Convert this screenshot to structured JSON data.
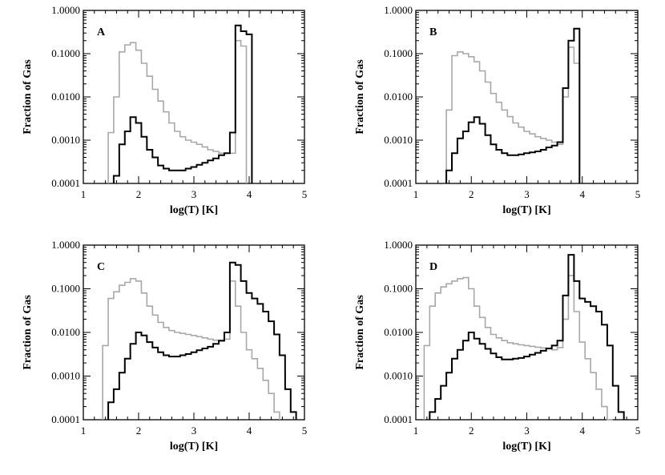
{
  "figure": {
    "xlabel": "log(T) [K]",
    "ylabel": "Fraction of Gas"
  },
  "colors": {
    "dark": "#000000",
    "light": "#a8a8a8"
  },
  "chart_data": [
    {
      "panel": "A",
      "type": "line",
      "xlabel": "log(T) [K]",
      "ylabel": "Fraction of Gas",
      "xlim": [
        1,
        5
      ],
      "ylim": [
        0.0001,
        1.0
      ],
      "yscale": "log",
      "xticks": [
        "1",
        "2",
        "3",
        "4",
        "5"
      ],
      "yticks": [
        "0.0001",
        "0.0010",
        "0.0100",
        "0.1000",
        "1.0000"
      ],
      "binwidth": 0.1,
      "series": [
        {
          "name": "dark",
          "color": "#000000",
          "x": [
            1.6,
            1.7,
            1.8,
            1.9,
            2.0,
            2.1,
            2.2,
            2.3,
            2.4,
            2.5,
            2.6,
            2.7,
            2.8,
            2.9,
            3.0,
            3.1,
            3.2,
            3.3,
            3.4,
            3.5,
            3.6,
            3.7,
            3.8,
            3.9,
            4.0
          ],
          "y": [
            0.00015,
            0.0008,
            0.0016,
            0.0034,
            0.0025,
            0.0012,
            0.0006,
            0.0004,
            0.00026,
            0.00022,
            0.0002,
            0.0002,
            0.0002,
            0.00022,
            0.00024,
            0.00027,
            0.0003,
            0.00034,
            0.00038,
            0.00045,
            0.0005,
            0.0015,
            0.45,
            0.33,
            0.28
          ]
        },
        {
          "name": "light",
          "color": "#a8a8a8",
          "x": [
            1.5,
            1.6,
            1.7,
            1.8,
            1.9,
            2.0,
            2.1,
            2.2,
            2.3,
            2.4,
            2.5,
            2.6,
            2.7,
            2.8,
            2.9,
            3.0,
            3.1,
            3.2,
            3.3,
            3.4,
            3.5,
            3.6,
            3.7,
            3.8,
            3.9
          ],
          "y": [
            0.0015,
            0.01,
            0.11,
            0.16,
            0.18,
            0.12,
            0.06,
            0.03,
            0.015,
            0.008,
            0.0045,
            0.0025,
            0.0016,
            0.0012,
            0.001,
            0.0009,
            0.0008,
            0.0007,
            0.0006,
            0.00055,
            0.0005,
            0.0005,
            0.0005,
            0.2,
            0.15
          ]
        }
      ]
    },
    {
      "panel": "B",
      "type": "line",
      "xlabel": "log(T) [K]",
      "ylabel": "Fraction of Gas",
      "xlim": [
        1,
        5
      ],
      "ylim": [
        0.0001,
        1.0
      ],
      "yscale": "log",
      "xticks": [
        "1",
        "2",
        "3",
        "4",
        "5"
      ],
      "yticks": [
        "0.0001",
        "0.0010",
        "0.0100",
        "0.1000",
        "1.0000"
      ],
      "binwidth": 0.1,
      "series": [
        {
          "name": "dark",
          "color": "#000000",
          "x": [
            1.6,
            1.7,
            1.8,
            1.9,
            2.0,
            2.1,
            2.2,
            2.3,
            2.4,
            2.5,
            2.6,
            2.7,
            2.8,
            2.9,
            3.0,
            3.1,
            3.2,
            3.3,
            3.4,
            3.5,
            3.6,
            3.7,
            3.8,
            3.9
          ],
          "y": [
            0.0002,
            0.0005,
            0.0011,
            0.0016,
            0.0026,
            0.0034,
            0.0024,
            0.0013,
            0.0008,
            0.0006,
            0.0005,
            0.00045,
            0.00045,
            0.00047,
            0.0005,
            0.00052,
            0.00055,
            0.0006,
            0.00068,
            0.00075,
            0.0009,
            0.016,
            0.2,
            0.38
          ]
        },
        {
          "name": "light",
          "color": "#a8a8a8",
          "x": [
            1.6,
            1.7,
            1.8,
            1.9,
            2.0,
            2.1,
            2.2,
            2.3,
            2.4,
            2.5,
            2.6,
            2.7,
            2.8,
            2.9,
            3.0,
            3.1,
            3.2,
            3.3,
            3.4,
            3.5,
            3.6,
            3.7,
            3.8,
            3.9
          ],
          "y": [
            0.005,
            0.09,
            0.11,
            0.1,
            0.085,
            0.065,
            0.04,
            0.022,
            0.012,
            0.0075,
            0.005,
            0.0035,
            0.0025,
            0.002,
            0.0016,
            0.0014,
            0.0012,
            0.0011,
            0.001,
            0.0009,
            0.0008,
            0.01,
            0.14,
            0.06
          ]
        }
      ]
    },
    {
      "panel": "C",
      "type": "line",
      "xlabel": "log(T) [K]",
      "ylabel": "Fraction of Gas",
      "xlim": [
        1,
        5
      ],
      "ylim": [
        0.0001,
        1.0
      ],
      "yscale": "log",
      "xticks": [
        "1",
        "2",
        "3",
        "4",
        "5"
      ],
      "yticks": [
        "0.0001",
        "0.0010",
        "0.0100",
        "0.1000",
        "1.0000"
      ],
      "binwidth": 0.1,
      "series": [
        {
          "name": "dark",
          "color": "#000000",
          "x": [
            1.5,
            1.6,
            1.7,
            1.8,
            1.9,
            2.0,
            2.1,
            2.2,
            2.3,
            2.4,
            2.5,
            2.6,
            2.7,
            2.8,
            2.9,
            3.0,
            3.1,
            3.2,
            3.3,
            3.4,
            3.5,
            3.6,
            3.7,
            3.8,
            3.9,
            4.0,
            4.1,
            4.2,
            4.3,
            4.4,
            4.5,
            4.6,
            4.7,
            4.8
          ],
          "y": [
            0.00025,
            0.0005,
            0.0012,
            0.0025,
            0.0055,
            0.01,
            0.0085,
            0.006,
            0.0045,
            0.0035,
            0.003,
            0.0028,
            0.0028,
            0.003,
            0.0032,
            0.0035,
            0.0039,
            0.0043,
            0.0047,
            0.0055,
            0.0065,
            0.01,
            0.4,
            0.35,
            0.15,
            0.08,
            0.06,
            0.045,
            0.03,
            0.018,
            0.009,
            0.003,
            0.0005,
            0.00015
          ]
        },
        {
          "name": "light",
          "color": "#a8a8a8",
          "x": [
            1.4,
            1.5,
            1.6,
            1.7,
            1.8,
            1.9,
            2.0,
            2.1,
            2.2,
            2.3,
            2.4,
            2.5,
            2.6,
            2.7,
            2.8,
            2.9,
            3.0,
            3.1,
            3.2,
            3.3,
            3.4,
            3.5,
            3.6,
            3.7,
            3.8,
            3.9,
            4.0,
            4.1,
            4.2,
            4.3,
            4.4,
            4.5
          ],
          "y": [
            0.005,
            0.06,
            0.085,
            0.12,
            0.14,
            0.17,
            0.15,
            0.08,
            0.04,
            0.025,
            0.017,
            0.013,
            0.011,
            0.01,
            0.0095,
            0.009,
            0.0085,
            0.008,
            0.0075,
            0.007,
            0.0066,
            0.0063,
            0.007,
            0.15,
            0.04,
            0.01,
            0.004,
            0.0025,
            0.0015,
            0.0008,
            0.0004,
            0.00015
          ]
        }
      ]
    },
    {
      "panel": "D",
      "type": "line",
      "xlabel": "log(T) [K]",
      "ylabel": "Fraction of Gas",
      "xlim": [
        1,
        5
      ],
      "ylim": [
        0.0001,
        1.0
      ],
      "yscale": "log",
      "xticks": [
        "1",
        "2",
        "3",
        "4",
        "5"
      ],
      "yticks": [
        "0.0001",
        "0.0010",
        "0.0100",
        "0.1000",
        "1.0000"
      ],
      "binwidth": 0.1,
      "series": [
        {
          "name": "dark",
          "color": "#000000",
          "x": [
            1.3,
            1.4,
            1.5,
            1.6,
            1.7,
            1.8,
            1.9,
            2.0,
            2.1,
            2.2,
            2.3,
            2.4,
            2.5,
            2.6,
            2.7,
            2.8,
            2.9,
            3.0,
            3.1,
            3.2,
            3.3,
            3.4,
            3.5,
            3.6,
            3.7,
            3.8,
            3.9,
            4.0,
            4.1,
            4.2,
            4.3,
            4.4,
            4.5,
            4.6,
            4.7
          ],
          "y": [
            0.00015,
            0.0003,
            0.0006,
            0.0012,
            0.0025,
            0.004,
            0.0065,
            0.01,
            0.0072,
            0.0055,
            0.0042,
            0.0033,
            0.0027,
            0.0024,
            0.0024,
            0.0025,
            0.0026,
            0.0028,
            0.0031,
            0.0034,
            0.0038,
            0.0043,
            0.005,
            0.0065,
            0.07,
            0.6,
            0.15,
            0.06,
            0.05,
            0.04,
            0.03,
            0.015,
            0.005,
            0.0006,
            0.00015
          ]
        },
        {
          "name": "light",
          "color": "#a8a8a8",
          "x": [
            1.2,
            1.3,
            1.4,
            1.5,
            1.6,
            1.7,
            1.8,
            1.9,
            2.0,
            2.1,
            2.2,
            2.3,
            2.4,
            2.5,
            2.6,
            2.7,
            2.8,
            2.9,
            3.0,
            3.1,
            3.2,
            3.3,
            3.4,
            3.5,
            3.6,
            3.7,
            3.8,
            3.9,
            4.0,
            4.1,
            4.2,
            4.3,
            4.4,
            4.5
          ],
          "y": [
            0.005,
            0.04,
            0.08,
            0.11,
            0.13,
            0.15,
            0.17,
            0.18,
            0.1,
            0.04,
            0.022,
            0.013,
            0.009,
            0.0075,
            0.0065,
            0.0058,
            0.0055,
            0.0052,
            0.005,
            0.0048,
            0.0046,
            0.0044,
            0.0042,
            0.004,
            0.0045,
            0.02,
            0.2,
            0.03,
            0.006,
            0.0025,
            0.0012,
            0.0005,
            0.0002,
            0.0001
          ]
        }
      ]
    }
  ]
}
